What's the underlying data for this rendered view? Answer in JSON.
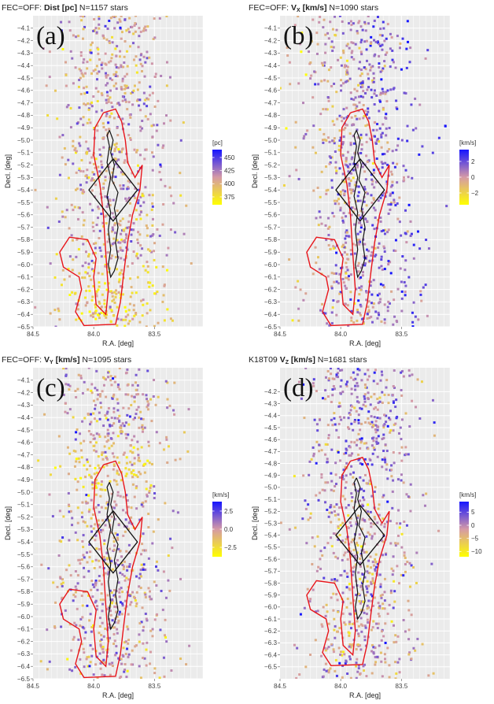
{
  "chart_data": [
    {
      "type": "scatter",
      "panel_letter": "(a)",
      "title_prefix": "FEC=OFF:",
      "title_bold": "Dist [pc]",
      "title_count": "N=1157 stars",
      "xlabel": "R.A. [deg]",
      "ylabel": "Decl. [deg]",
      "xlim": [
        84.5,
        83.1
      ],
      "ylim": [
        -6.5,
        -4.0
      ],
      "x_ticks": [
        "84.5",
        "84.0",
        "83.5"
      ],
      "x_tick_values": [
        84.5,
        84.0,
        83.5
      ],
      "y_ticks": [
        "-4.1",
        "-4.2",
        "-4.3",
        "-4.4",
        "-4.5",
        "-4.6",
        "-4.7",
        "-4.8",
        "-4.9",
        "-5.0",
        "-5.1",
        "-5.2",
        "-5.3",
        "-5.4",
        "-5.5",
        "-5.6",
        "-5.7",
        "-5.8",
        "-5.9",
        "-6.0",
        "-6.1",
        "-6.2",
        "-6.3",
        "-6.4",
        "-6.5"
      ],
      "legend": {
        "title": "[pc]",
        "labels": [
          "450",
          "425",
          "400",
          "375"
        ],
        "values": [
          450,
          425,
          400,
          375
        ],
        "range": [
          360,
          465
        ],
        "position": "right"
      },
      "n_stars": 1157,
      "seed": 11
    },
    {
      "type": "scatter",
      "panel_letter": "(b)",
      "title_prefix": "FEC=OFF:",
      "title_bold": "V",
      "title_sub": "X",
      "title_bold2": "[km/s]",
      "title_count": "N=1090 stars",
      "xlabel": "R.A. [deg]",
      "ylabel": "Decl. [deg]",
      "xlim": [
        84.5,
        83.1
      ],
      "ylim": [
        -6.5,
        -4.0
      ],
      "x_ticks": [
        "84.5",
        "84.0",
        "83.5"
      ],
      "x_tick_values": [
        84.5,
        84.0,
        83.5
      ],
      "y_ticks": [
        "-4.1",
        "-4.2",
        "-4.3",
        "-4.4",
        "-4.5",
        "-4.6",
        "-4.7",
        "-4.8",
        "-4.9",
        "-5.0",
        "-5.1",
        "-5.2",
        "-5.3",
        "-5.4",
        "-5.5",
        "-5.6",
        "-5.7",
        "-5.8",
        "-5.9",
        "-6.0",
        "-6.1",
        "-6.2",
        "-6.3",
        "-6.4",
        "-6.5"
      ],
      "legend": {
        "title": "[km/s]",
        "labels": [
          "2",
          "0",
          "-2"
        ],
        "values": [
          2,
          0,
          -2
        ],
        "range": [
          -3.5,
          3.5
        ],
        "position": "right"
      },
      "n_stars": 1090,
      "seed": 23
    },
    {
      "type": "scatter",
      "panel_letter": "(c)",
      "title_prefix": "FEC=OFF:",
      "title_bold": "V",
      "title_sub": "Y",
      "title_bold2": "[km/s]",
      "title_count": "N=1095 stars",
      "xlabel": "R.A. [deg]",
      "ylabel": "Decl. [deg]",
      "xlim": [
        84.5,
        83.1
      ],
      "ylim": [
        -6.5,
        -4.0
      ],
      "x_ticks": [
        "84.5",
        "84.0",
        "83.5"
      ],
      "x_tick_values": [
        84.5,
        84.0,
        83.5
      ],
      "y_ticks": [
        "-4.1",
        "-4.2",
        "-4.3",
        "-4.4",
        "-4.5",
        "-4.6",
        "-4.7",
        "-4.8",
        "-4.9",
        "-5.0",
        "-5.1",
        "-5.2",
        "-5.3",
        "-5.4",
        "-5.5",
        "-5.6",
        "-5.7",
        "-5.8",
        "-5.9",
        "-6.0",
        "-6.1",
        "-6.2",
        "-6.3",
        "-6.4",
        "-6.5"
      ],
      "legend": {
        "title": "[km/s]",
        "labels": [
          "2.5",
          "0.0",
          "-2.5"
        ],
        "values": [
          2.5,
          0.0,
          -2.5
        ],
        "range": [
          -3.8,
          3.8
        ],
        "position": "right"
      },
      "n_stars": 1095,
      "seed": 37
    },
    {
      "type": "scatter",
      "panel_letter": "(d)",
      "title_prefix": "K18T09",
      "title_bold": "V",
      "title_sub": "Z",
      "title_bold2": "[km/s]",
      "title_count": "N=1681 stars",
      "xlabel": "R.A. [deg]",
      "ylabel": "Decl. [deg]",
      "xlim": [
        84.5,
        83.1
      ],
      "ylim": [
        -6.6,
        -4.0
      ],
      "x_ticks": [
        "84.5",
        "84.0",
        "83.5"
      ],
      "x_tick_values": [
        84.5,
        84.0,
        83.5
      ],
      "y_ticks": [
        "-4.2",
        "-4.3",
        "-4.4",
        "-4.5",
        "-4.6",
        "-4.7",
        "-4.8",
        "-4.9",
        "-5.0",
        "-5.1",
        "-5.2",
        "-5.3",
        "-5.4",
        "-5.5",
        "-5.6",
        "-5.7",
        "-5.8",
        "-5.9",
        "-6.0",
        "-6.1",
        "-6.2",
        "-6.3",
        "-6.4",
        "-6.5"
      ],
      "legend": {
        "title": "[km/s]",
        "labels": [
          "5",
          "0",
          "-5",
          "-10"
        ],
        "values": [
          5,
          0,
          -5,
          -10
        ],
        "range": [
          -12,
          9
        ],
        "position": "right"
      },
      "n_stars": 1681,
      "seed": 53
    }
  ],
  "colors": {
    "panel_bg": "#ebebeb",
    "grid": "#ffffff",
    "contour_red": "#e8141a",
    "contour_black": "#111111",
    "scale_low": "#ffff00",
    "scale_mid": "#d59aa6",
    "scale_high": "#1515ff"
  },
  "overlay_geometry_deg": {
    "red_outline": [
      [
        83.92,
        -4.78
      ],
      [
        83.82,
        -4.75
      ],
      [
        83.77,
        -4.85
      ],
      [
        83.74,
        -5.0
      ],
      [
        83.72,
        -5.18
      ],
      [
        83.66,
        -5.3
      ],
      [
        83.6,
        -5.2
      ],
      [
        83.62,
        -5.4
      ],
      [
        83.68,
        -5.6
      ],
      [
        83.72,
        -5.82
      ],
      [
        83.75,
        -6.05
      ],
      [
        83.78,
        -6.3
      ],
      [
        83.82,
        -6.48
      ],
      [
        84.08,
        -6.49
      ],
      [
        84.15,
        -6.38
      ],
      [
        84.1,
        -6.2
      ],
      [
        84.12,
        -6.1
      ],
      [
        84.25,
        -6.02
      ],
      [
        84.28,
        -5.9
      ],
      [
        84.2,
        -5.78
      ],
      [
        84.05,
        -5.8
      ],
      [
        83.98,
        -5.95
      ],
      [
        84.0,
        -6.1
      ],
      [
        83.98,
        -6.32
      ],
      [
        83.9,
        -6.4
      ],
      [
        83.88,
        -6.2
      ],
      [
        83.9,
        -5.92
      ],
      [
        83.92,
        -5.6
      ],
      [
        83.95,
        -5.35
      ],
      [
        84.0,
        -5.12
      ],
      [
        83.99,
        -4.9
      ],
      [
        83.92,
        -4.78
      ]
    ],
    "black_filament": [
      [
        83.87,
        -4.92
      ],
      [
        83.84,
        -5.0
      ],
      [
        83.86,
        -5.1
      ],
      [
        83.83,
        -5.2
      ],
      [
        83.85,
        -5.32
      ],
      [
        83.8,
        -5.42
      ],
      [
        83.83,
        -5.55
      ],
      [
        83.8,
        -5.7
      ],
      [
        83.82,
        -5.82
      ],
      [
        83.8,
        -5.95
      ],
      [
        83.83,
        -6.05
      ],
      [
        83.86,
        -6.1
      ],
      [
        83.88,
        -6.0
      ],
      [
        83.86,
        -5.88
      ],
      [
        83.88,
        -5.72
      ],
      [
        83.86,
        -5.58
      ],
      [
        83.89,
        -5.45
      ],
      [
        83.86,
        -5.3
      ],
      [
        83.89,
        -5.18
      ],
      [
        83.87,
        -5.05
      ],
      [
        83.89,
        -4.96
      ],
      [
        83.87,
        -4.92
      ]
    ],
    "diamond": [
      [
        83.84,
        -5.15
      ],
      [
        83.64,
        -5.4
      ],
      [
        83.84,
        -5.65
      ],
      [
        84.04,
        -5.4
      ],
      [
        83.84,
        -5.15
      ]
    ]
  }
}
